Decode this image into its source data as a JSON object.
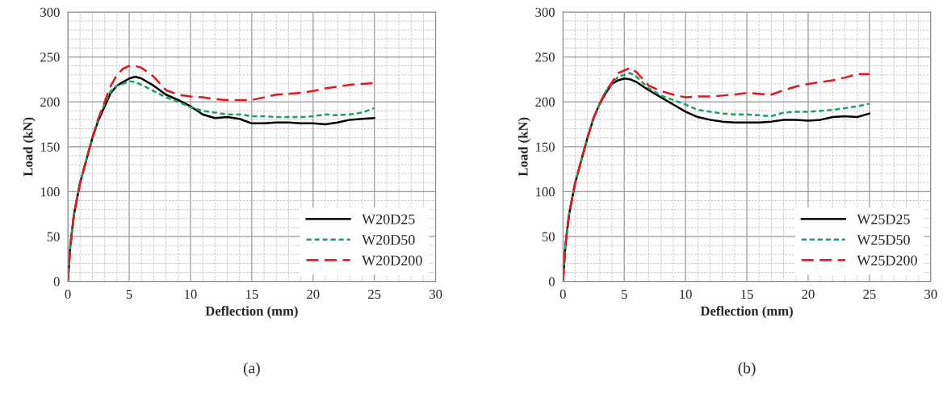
{
  "chart_data": [
    {
      "type": "line",
      "xlabel": "Deflection (mm)",
      "ylabel": "Load (kN)",
      "annotations": [
        "(a)"
      ],
      "x": [
        0,
        0.2,
        0.5,
        1,
        1.5,
        2,
        2.5,
        3,
        3.5,
        4,
        4.5,
        5,
        5.5,
        6,
        7,
        8,
        9,
        10,
        11,
        12,
        13,
        14,
        15,
        16,
        17,
        18,
        19,
        20,
        21,
        22,
        23,
        24,
        25
      ],
      "series": [
        {
          "name": "W20D25",
          "color": "#000000",
          "line_style": "solid",
          "values": [
            0,
            40,
            75,
            110,
            135,
            160,
            180,
            195,
            210,
            218,
            222,
            226,
            228,
            226,
            218,
            208,
            202,
            195,
            186,
            182,
            183,
            181,
            176,
            176,
            177,
            177,
            176,
            176,
            175,
            177,
            180,
            181,
            182
          ]
        },
        {
          "name": "W20D50",
          "color": "#1aa260",
          "line_style": "dotted",
          "values": [
            0,
            40,
            75,
            110,
            135,
            160,
            182,
            198,
            212,
            218,
            220,
            223,
            222,
            219,
            212,
            205,
            200,
            194,
            190,
            188,
            186,
            186,
            184,
            184,
            183,
            183,
            183,
            184,
            186,
            185,
            186,
            188,
            193
          ]
        },
        {
          "name": "W20D200",
          "color": "#e8141c",
          "line_style": "dashed",
          "values": [
            0,
            40,
            75,
            110,
            135,
            160,
            182,
            200,
            218,
            230,
            237,
            240,
            240,
            238,
            228,
            213,
            208,
            206,
            205,
            203,
            202,
            202,
            202,
            205,
            208,
            209,
            210,
            212,
            215,
            217,
            219,
            220,
            221
          ]
        }
      ],
      "xlim": [
        0,
        30
      ],
      "xticks": [
        0,
        5,
        10,
        15,
        20,
        25,
        30
      ],
      "ylim": [
        0,
        300
      ],
      "yticks": [
        0,
        50,
        100,
        150,
        200,
        250,
        300
      ],
      "grid": true,
      "legend": "bottom right"
    },
    {
      "type": "line",
      "xlabel": "Deflection (mm)",
      "ylabel": "Load (kN)",
      "annotations": [
        "(b)"
      ],
      "x": [
        0,
        0.2,
        0.5,
        1,
        1.5,
        2,
        2.5,
        3,
        3.5,
        4,
        4.5,
        5,
        5.5,
        6,
        7,
        8,
        9,
        10,
        11,
        12,
        13,
        14,
        15,
        16,
        17,
        18,
        19,
        20,
        21,
        22,
        23,
        24,
        25
      ],
      "series": [
        {
          "name": "W25D25",
          "color": "#000000",
          "line_style": "solid",
          "values": [
            0,
            40,
            75,
            110,
            135,
            160,
            182,
            198,
            210,
            220,
            224,
            226,
            225,
            222,
            213,
            205,
            197,
            189,
            183,
            180,
            178,
            177,
            177,
            177,
            178,
            180,
            180,
            179,
            180,
            183,
            184,
            183,
            187
          ]
        },
        {
          "name": "W25D50",
          "color": "#1aa260",
          "line_style": "dotted",
          "values": [
            0,
            40,
            75,
            110,
            135,
            160,
            182,
            198,
            212,
            220,
            228,
            230,
            232,
            228,
            215,
            207,
            202,
            197,
            191,
            189,
            187,
            186,
            186,
            185,
            184,
            188,
            189,
            189,
            190,
            191,
            193,
            195,
            198
          ]
        },
        {
          "name": "W25D200",
          "color": "#e8141c",
          "line_style": "dashed",
          "values": [
            0,
            40,
            75,
            110,
            135,
            160,
            182,
            198,
            212,
            222,
            232,
            235,
            238,
            233,
            218,
            212,
            208,
            205,
            206,
            206,
            207,
            208,
            210,
            209,
            208,
            213,
            217,
            220,
            222,
            224,
            227,
            231,
            231
          ]
        }
      ],
      "xlim": [
        0,
        30
      ],
      "xticks": [
        0,
        5,
        10,
        15,
        20,
        25,
        30
      ],
      "ylim": [
        0,
        300
      ],
      "yticks": [
        0,
        50,
        100,
        150,
        200,
        250,
        300
      ],
      "grid": true,
      "legend": "bottom right"
    }
  ]
}
